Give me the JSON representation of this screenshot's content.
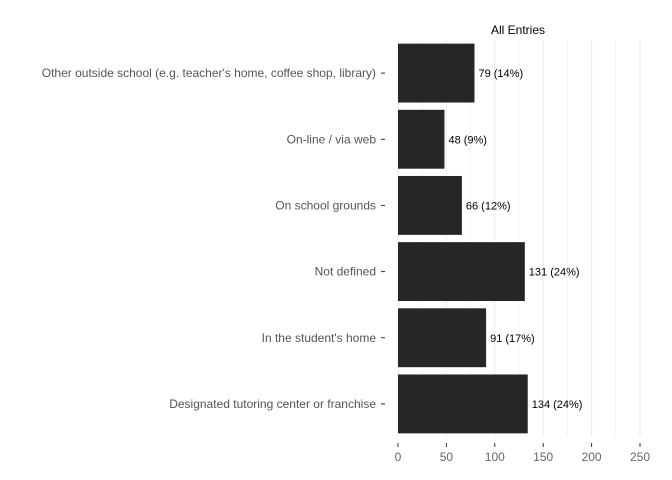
{
  "chart_data": {
    "type": "bar",
    "orientation": "horizontal",
    "facet_title": "All Entries",
    "categories": [
      "Other outside school (e.g. teacher's home, coffee shop, library)",
      "On-line / via web",
      "On school grounds",
      "Not defined",
      "In the student's home",
      "Designated tutoring center or franchise"
    ],
    "values": [
      79,
      48,
      66,
      131,
      91,
      134
    ],
    "data_labels": [
      "79 (14%)",
      "48 (9%)",
      "66 (12%)",
      "131 (24%)",
      "91 (17%)",
      "134 (24%)"
    ],
    "xlim": [
      0,
      250
    ],
    "x_ticks": [
      "0",
      "50",
      "100",
      "150",
      "200",
      "250"
    ],
    "grid": true,
    "bar_color": "#262626",
    "grid_color": "#ebebeb"
  }
}
